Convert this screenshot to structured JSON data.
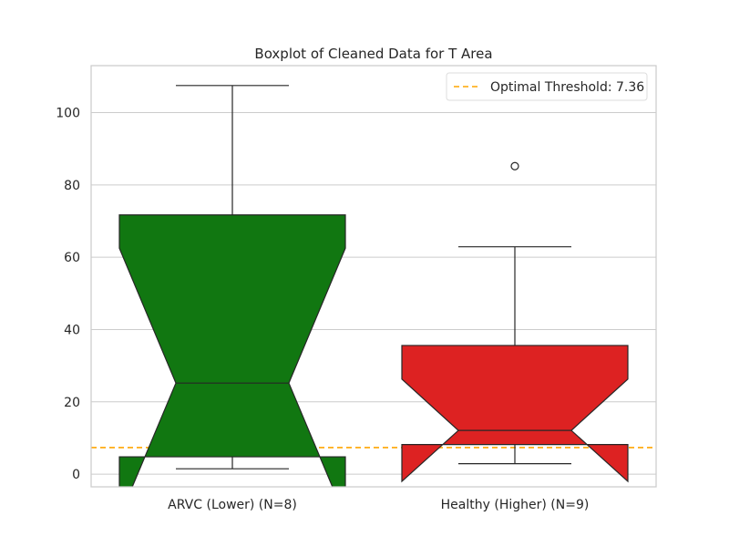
{
  "chart_data": {
    "type": "boxplot",
    "title": "Boxplot of Cleaned Data for T Area",
    "xlabel": "",
    "ylabel": "",
    "ylim": [
      -3.5,
      113
    ],
    "yticks": [
      0,
      20,
      40,
      60,
      80,
      100
    ],
    "ytick_labels": [
      "0",
      "20",
      "40",
      "60",
      "80",
      "100"
    ],
    "grid": true,
    "notched": true,
    "categories": [
      "ARVC (Lower) (N=8)",
      "Healthy (Higher) (N=9)"
    ],
    "boxes": [
      {
        "label": "ARVC (Lower) (N=8)",
        "color": "#117711",
        "whisker_low": 1.5,
        "q1": 4.8,
        "median": 25.2,
        "q3": 71.7,
        "whisker_high": 107.5,
        "notch_low": -12.0,
        "notch_high": 62.5,
        "outliers": []
      },
      {
        "label": "Healthy (Higher) (N=9)",
        "color": "#dd2222",
        "whisker_low": 2.9,
        "q1": 8.2,
        "median": 12.1,
        "q3": 35.6,
        "whisker_high": 62.9,
        "notch_low": -2.0,
        "notch_high": 26.3,
        "outliers": [
          85.2
        ]
      }
    ],
    "threshold": {
      "value": 7.36,
      "label": "Optimal Threshold: 7.36",
      "color": "#ffa500",
      "style": "dashed"
    },
    "legend": {
      "placement": "top-right",
      "entries": [
        "Optimal Threshold: 7.36"
      ]
    }
  }
}
